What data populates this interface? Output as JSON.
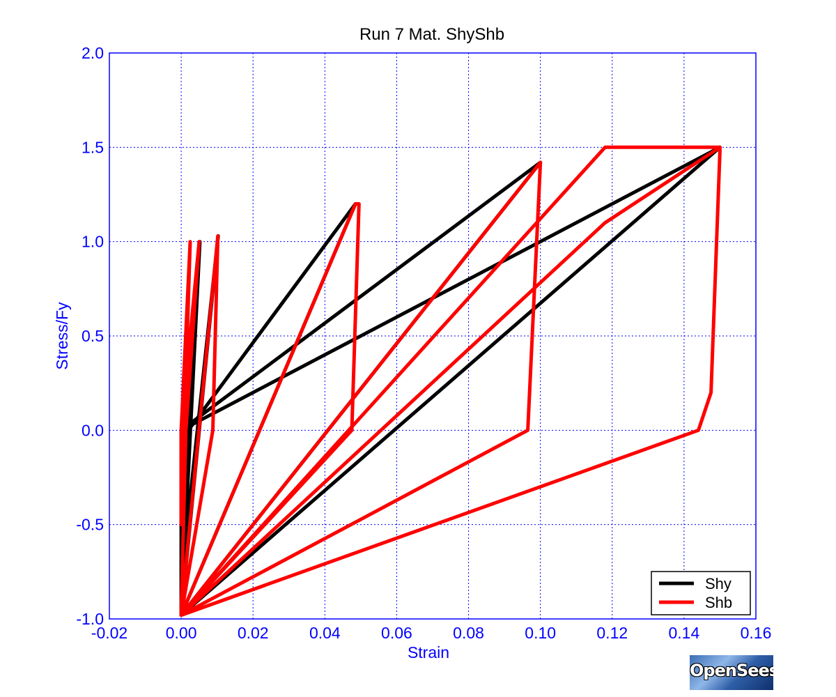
{
  "chart_data": {
    "type": "line",
    "title": "Run 7    Mat. ShyShb",
    "xlabel": "Strain",
    "ylabel": "Stress/Fy",
    "xlim": [
      -0.02,
      0.16
    ],
    "ylim": [
      -1.0,
      2.0
    ],
    "xticks": [
      "-0.02",
      "0.00",
      "0.02",
      "0.04",
      "0.06",
      "0.08",
      "0.10",
      "0.12",
      "0.14",
      "0.16"
    ],
    "yticks": [
      "2.0",
      "1.5",
      "1.0",
      "0.5",
      "0.0",
      "-0.5",
      "-1.0"
    ],
    "grid": true,
    "legend_position": "bottom-right",
    "series": [
      {
        "name": "Shy",
        "color": "#000000",
        "points": [
          [
            0.0,
            -0.55
          ],
          [
            0.0052,
            1.0
          ],
          [
            0.0,
            -0.98
          ],
          [
            0.0,
            -0.8
          ],
          [
            0.0103,
            1.03
          ],
          [
            0.0,
            -0.98
          ],
          [
            0.002,
            0.0
          ],
          [
            0.0485,
            1.2
          ],
          [
            0.0,
            -0.98
          ],
          [
            0.0,
            0.0
          ],
          [
            0.1,
            1.42
          ],
          [
            0.0,
            -0.98
          ],
          [
            0.0,
            0.0
          ],
          [
            0.15,
            1.5
          ],
          [
            0.0,
            -0.98
          ]
        ]
      },
      {
        "name": "Shb",
        "color": "#ff0000",
        "points": [
          [
            0.0,
            0.0
          ],
          [
            0.0025,
            1.0
          ],
          [
            0.0,
            -0.5
          ],
          [
            0.0,
            0.0
          ],
          [
            0.005,
            1.0
          ],
          [
            0.0013,
            0.0
          ],
          [
            0.0,
            -0.97
          ],
          [
            0.0102,
            1.03
          ],
          [
            0.0088,
            0.0
          ],
          [
            0.0,
            -0.98
          ],
          [
            0.0485,
            1.2
          ],
          [
            0.0495,
            1.2
          ],
          [
            0.0475,
            0.0
          ],
          [
            0.0,
            -0.98
          ],
          [
            0.1,
            1.42
          ],
          [
            0.1,
            1.42
          ],
          [
            0.0965,
            0.0
          ],
          [
            0.0,
            -0.98
          ],
          [
            0.118,
            1.5
          ],
          [
            0.15,
            1.5
          ],
          [
            0.15,
            1.48
          ],
          [
            0.1475,
            0.2
          ],
          [
            0.144,
            0.0
          ],
          [
            0.0,
            -0.98
          ],
          [
            0.118,
            1.1
          ],
          [
            0.15,
            1.5
          ]
        ]
      }
    ]
  },
  "logo": {
    "text": "OpenSees"
  }
}
